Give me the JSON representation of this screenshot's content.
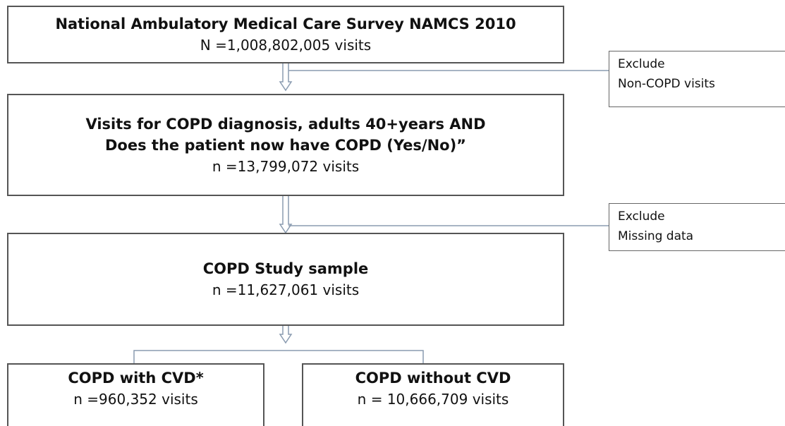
{
  "nodes": [
    {
      "lines": [
        "National Ambulatory Medical Care Survey NAMCS 2010"
      ],
      "count": "N =1,008,802,005 visits"
    },
    {
      "lines": [
        "Visits for COPD diagnosis, adults 40+years AND",
        "Does the patient now have COPD (Yes/No)”"
      ],
      "count": "n =13,799,072 visits"
    },
    {
      "lines": [
        "COPD Study sample"
      ],
      "count": "n =11,627,061 visits"
    },
    {
      "lines": [
        "COPD with CVD*"
      ],
      "count": "n =960,352 visits"
    },
    {
      "lines": [
        "COPD without CVD"
      ],
      "count": "n = 10,666,709 visits"
    }
  ],
  "exclusions": [
    {
      "lines": [
        "Exclude",
        "Non-COPD visits"
      ]
    },
    {
      "lines": [
        "Exclude",
        "Missing data"
      ]
    }
  ]
}
